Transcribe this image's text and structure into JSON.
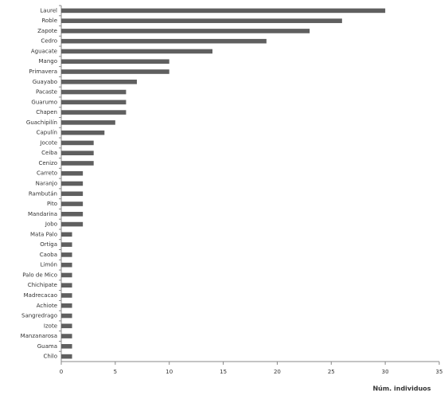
{
  "chart_data": {
    "type": "barh",
    "categories": [
      "Laurel",
      "Roble",
      "Zapote",
      "Cedro",
      "Aguacate",
      "Mango",
      "Primavera",
      "Guayabo",
      "Pacaste",
      "Guarumo",
      "Chapen",
      "Guachipilín",
      "Capulín",
      "Jocote",
      "Ceiba",
      "Cenizo",
      "Carreto",
      "Naranjo",
      "Rambután",
      "Pito",
      "Mandarina",
      "Jobo",
      "Mata Palo",
      "Ortiga",
      "Caoba",
      "Limón",
      "Palo de Mico",
      "Chichipate",
      "Madrecacao",
      "Achiote",
      "Sangredrago",
      "Izote",
      "Manzanarosa",
      "Guama",
      "Chilo"
    ],
    "values": [
      30,
      26,
      23,
      19,
      14,
      10,
      10,
      7,
      6,
      6,
      6,
      5,
      4,
      3,
      3,
      3,
      2,
      2,
      2,
      2,
      2,
      2,
      1,
      1,
      1,
      1,
      1,
      1,
      1,
      1,
      1,
      1,
      1,
      1,
      1
    ],
    "color": "#5f5f5f",
    "xlim": [
      0,
      35
    ],
    "xticks": [
      0,
      5,
      10,
      15,
      20,
      25,
      30,
      35
    ],
    "xlabel": "Núm. individuos"
  }
}
